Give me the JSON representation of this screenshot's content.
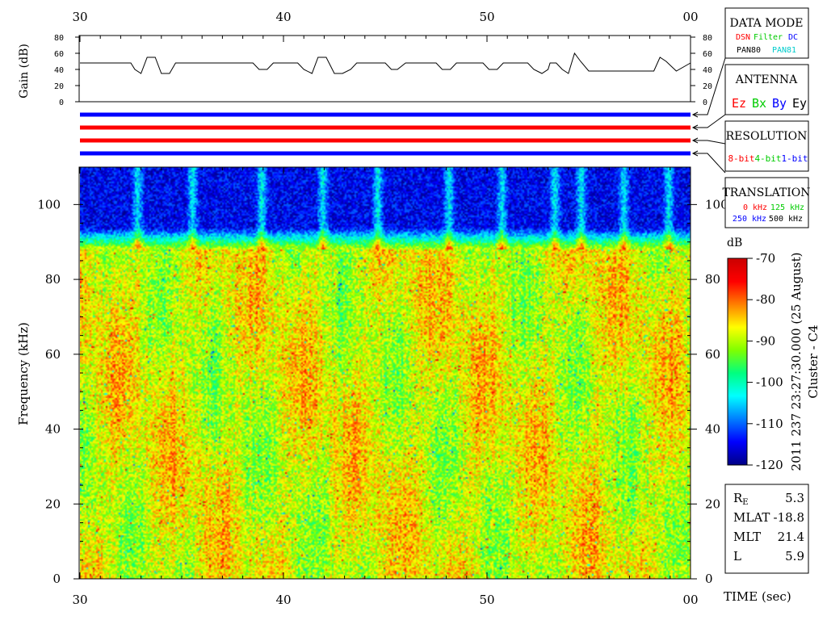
{
  "chart_data": [
    {
      "type": "line",
      "ylabel": "Gain (dB)",
      "y_ticks": [
        0,
        20,
        40,
        60,
        80
      ],
      "ylim": [
        0,
        80
      ],
      "x_tick_labels": [
        "30",
        "40",
        "50",
        "00"
      ],
      "xlim": [
        30,
        60
      ],
      "series": [
        {
          "x": [
            30,
            32.5,
            32.7,
            33.0,
            33.3,
            33.7,
            34.0,
            34.4,
            34.7,
            35.0,
            38.5,
            38.8,
            39.2,
            39.5,
            40.7,
            41.0,
            41.4,
            41.7,
            42.1,
            42.5,
            42.9,
            43.3,
            43.6,
            45.0,
            45.3,
            45.6,
            46.0,
            47.5,
            47.8,
            48.2,
            48.5,
            49.8,
            50.1,
            50.5,
            50.8,
            52.0,
            52.3,
            52.7,
            53.0,
            53.1,
            53.4,
            53.7,
            54.0,
            54.3,
            54.6,
            55.0,
            55.4,
            58.2,
            58.5,
            58.8,
            59.3,
            60
          ],
          "y": [
            48,
            48,
            40,
            35,
            55,
            55,
            35,
            35,
            48,
            48,
            48,
            40,
            40,
            48,
            48,
            40,
            35,
            55,
            55,
            35,
            35,
            40,
            48,
            48,
            40,
            40,
            48,
            48,
            40,
            40,
            48,
            48,
            40,
            40,
            48,
            48,
            40,
            35,
            40,
            48,
            48,
            40,
            35,
            60,
            50,
            38,
            38,
            38,
            55,
            50,
            38,
            48
          ]
        }
      ]
    },
    {
      "type": "heatmap",
      "xlabel": "TIME (sec)",
      "ylabel": "Frequency (kHz)",
      "x_tick_labels": [
        "30",
        "40",
        "50",
        "00"
      ],
      "xlim": [
        30,
        60
      ],
      "y_ticks": [
        0,
        20,
        40,
        60,
        80,
        100
      ],
      "ylim": [
        0,
        110
      ],
      "colorbar": {
        "label": "dB",
        "ticks": [
          -70,
          -80,
          -90,
          -100,
          -110,
          -120
        ],
        "range": [
          -120,
          -70
        ]
      },
      "description_low_band_db": -88,
      "description_high_band_db": -115,
      "high_band_start_khz": 88,
      "bright_stripes_sec": [
        32.8,
        35.5,
        38.9,
        41.9,
        44.6,
        48.1,
        50.7,
        53.3,
        54.6,
        56.7,
        58.9
      ]
    }
  ],
  "status_lines": [
    {
      "color": "#0000ff"
    },
    {
      "color": "#ff0000"
    },
    {
      "color": "#ff0000"
    },
    {
      "color": "#0000ff"
    }
  ],
  "panels": {
    "data_mode": {
      "title": "DATA MODE",
      "row1": [
        {
          "text": "DSN",
          "color": "#ff0000"
        },
        {
          "text": "Filter",
          "color": "#00cc00"
        },
        {
          "text": "DC",
          "color": "#0000ff"
        }
      ],
      "row2": [
        {
          "text": "PAN80",
          "color": "#000000"
        },
        {
          "text": "PAN81",
          "color": "#00cccc"
        }
      ]
    },
    "antenna": {
      "title": "ANTENNA",
      "items": [
        {
          "text": "Ez",
          "color": "#ff0000"
        },
        {
          "text": "Bx",
          "color": "#00cc00"
        },
        {
          "text": "By",
          "color": "#0000ff"
        },
        {
          "text": "Ey",
          "color": "#000000"
        }
      ]
    },
    "resolution": {
      "title": "RESOLUTION",
      "items": [
        {
          "text": "8-bit",
          "color": "#ff0000"
        },
        {
          "text": "4-bit",
          "color": "#00cc00"
        },
        {
          "text": "1-bit",
          "color": "#0000ff"
        }
      ]
    },
    "translation": {
      "title": "TRANSLATION",
      "row1": [
        {
          "text": "0 kHz",
          "color": "#ff0000"
        },
        {
          "text": "125 kHz",
          "color": "#00cc00"
        }
      ],
      "row2": [
        {
          "text": "250 kHz",
          "color": "#0000ff"
        },
        {
          "text": "500 kHz",
          "color": "#000000"
        }
      ]
    }
  },
  "side_caption": "2011 237 23:27:30.000 (25 August)",
  "spacecraft": "Cluster - C4",
  "orbit": [
    {
      "label": "R",
      "sub": "E",
      "value": "5.3"
    },
    {
      "label": "MLAT",
      "sub": "",
      "value": "-18.8"
    },
    {
      "label": "MLT",
      "sub": "",
      "value": "21.4"
    },
    {
      "label": "L",
      "sub": "",
      "value": "5.9"
    }
  ],
  "colors": {
    "colormap": [
      "#000088",
      "#0000ff",
      "#0080ff",
      "#00ffff",
      "#00ff80",
      "#80ff00",
      "#ffff00",
      "#ff8000",
      "#ff0000",
      "#cc0000"
    ]
  }
}
